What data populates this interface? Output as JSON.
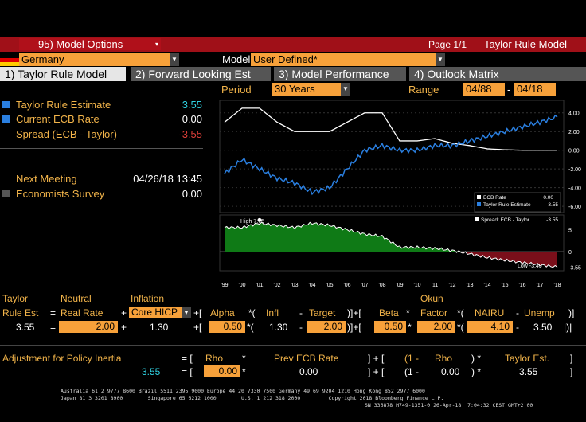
{
  "header": {
    "options_label": "95) Model Options",
    "page": "Page 1/1",
    "title": "Taylor Rule Model"
  },
  "country": {
    "value": "Germany"
  },
  "model": {
    "label": "Model",
    "value": "User Defined*"
  },
  "tabs": [
    {
      "label": "1) Taylor Rule Model",
      "active": true
    },
    {
      "label": "2) Forward Looking Est",
      "active": false
    },
    {
      "label": "3) Model Performance",
      "active": false
    },
    {
      "label": "4) Outlook Matrix",
      "active": false
    }
  ],
  "controls": {
    "period_label": "Period",
    "period_value": "30 Years",
    "range_label": "Range",
    "range_start": "04/88",
    "range_sep": "-",
    "range_end": "04/18"
  },
  "summary": {
    "taylor_label": "Taylor Rule Estimate",
    "taylor_value": "3.55",
    "ecb_label": "Current ECB Rate",
    "ecb_value": "0.00",
    "spread_label": "Spread (ECB - Taylor)",
    "spread_value": "-3.55",
    "meeting_label": "Next Meeting",
    "meeting_value": "04/26/18 13:45",
    "survey_label": "Economists Survey",
    "survey_value": "0.00"
  },
  "chart_data": [
    {
      "type": "line",
      "x": [
        "'99",
        "'00",
        "'01",
        "'02",
        "'03",
        "'04",
        "'05",
        "'06",
        "'07",
        "'08",
        "'09",
        "'10",
        "'11",
        "'12",
        "'13",
        "'14",
        "'15",
        "'16",
        "'17",
        "'18"
      ],
      "series": [
        {
          "name": "ECB Rate",
          "value_label": "0.00",
          "color": "#ffffff",
          "values": [
            3.0,
            4.5,
            4.5,
            3.0,
            2.0,
            2.0,
            2.0,
            3.0,
            4.0,
            4.0,
            1.0,
            1.0,
            1.25,
            0.75,
            0.5,
            0.15,
            0.05,
            0.0,
            0.0,
            0.0
          ]
        },
        {
          "name": "Taylor Rule Estimate",
          "value_label": "3.55",
          "color": "#2a7fe0",
          "values": [
            -2.5,
            -1.0,
            -2.0,
            -3.0,
            -3.5,
            -4.5,
            -4.0,
            -2.0,
            0.0,
            0.5,
            0.0,
            0.0,
            0.5,
            0.5,
            1.0,
            1.5,
            2.0,
            2.5,
            3.0,
            3.55
          ]
        }
      ],
      "yticks": [
        "4.00",
        "2.00",
        "0.00",
        "-2.00",
        "-4.00",
        "-6.00"
      ],
      "ylim": [
        -6.5,
        5
      ]
    },
    {
      "type": "area",
      "series": [
        {
          "name": "Spread: ECB - Taylor",
          "value_label": "-3.55",
          "values": [
            5.5,
            5.5,
            6.5,
            6.0,
            5.5,
            6.5,
            6.0,
            5.0,
            4.0,
            3.5,
            1.0,
            1.0,
            0.75,
            0.25,
            -0.5,
            -1.35,
            -1.95,
            -2.5,
            -3.0,
            -3.55
          ]
        }
      ],
      "annotations": [
        "High 7.75",
        "Low -3.49"
      ],
      "yticks": [
        "5",
        "0",
        "-3.55"
      ],
      "ylim": [
        -4,
        8
      ]
    }
  ],
  "formula": {
    "taylor": "Taylor",
    "rule_est": "Rule Est",
    "neutral": "Neutral",
    "real_rate": "Real Rate",
    "inflation": "Inflation",
    "core_hicp": "Core HICP",
    "alpha": "Alpha",
    "infl": "Infl",
    "target": "Target",
    "okun": "Okun",
    "beta": "Beta",
    "factor": "Factor",
    "nairu": "NAIRU",
    "unemp": "Unemp",
    "est_value": "3.55",
    "real_rate_value": "2.00",
    "infl_base": "1.30",
    "alpha_value": "0.50",
    "infl_value": "1.30",
    "target_value": "2.00",
    "beta_value": "0.50",
    "factor_value": "2.00",
    "nairu_value": "4.10",
    "unemp_value": "3.50"
  },
  "inertia": {
    "label": "Adjustment for Policy Inertia",
    "rho": "Rho",
    "prev_ecb": "Prev ECB Rate",
    "one_minus": "(1 -",
    "rho2": "Rho",
    "taylor_est": "Taylor Est.",
    "result": "3.55",
    "rho_value": "0.00",
    "prev_value": "0.00",
    "one_minus2": "(1 -",
    "rho_value2": "0.00",
    "taylor_value": "3.55"
  },
  "footer": {
    "line1": "Australia 61 2 9777 8600 Brazil 5511 2395 9000 Europe 44 20 7330 7500 Germany 49 69 9204 1210 Hong Kong 852 2977 6000",
    "line2": "Japan 81 3 3201 8900        Singapore 65 6212 1000        U.S. 1 212 318 2000         Copyright 2018 Bloomberg Finance L.P.",
    "line3": "SN 336878 H749-1351-0 26-Apr-18  7:04:32 CEST GMT+2:00"
  }
}
